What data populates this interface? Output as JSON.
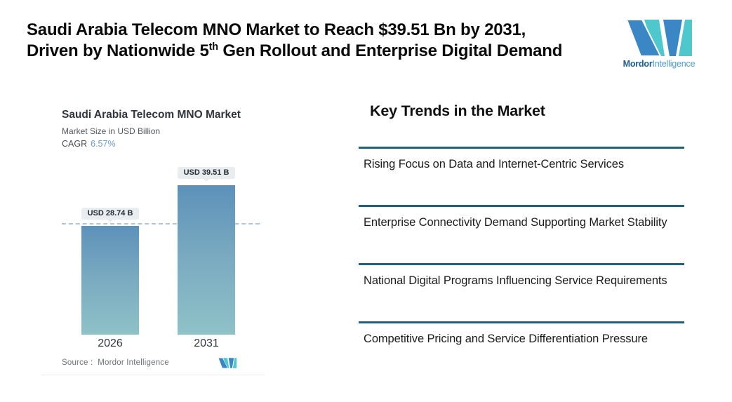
{
  "header": {
    "title_line1": "Saudi Arabia Telecom MNO Market to Reach $39.51 Bn by 2031,",
    "title_line2_pre": "Driven by Nationwide 5",
    "title_line2_sup": "th",
    "title_line2_post": " Gen Rollout and Enterprise Digital Demand"
  },
  "logo": {
    "word_bold": "Mordor",
    "word_light": "Intelligence",
    "mark_blue": "#3b86c4",
    "mark_teal": "#4ec7cd"
  },
  "chart": {
    "title": "Saudi Arabia Telecom MNO Market",
    "subtitle": "Market Size in USD Billion",
    "cagr_label": "CAGR",
    "cagr_value": "6.57%",
    "cagr_value_color": "#6d9ecb",
    "source_label": "Source :",
    "source_value": "Mordor Intelligence"
  },
  "chart_data": {
    "type": "bar",
    "categories": [
      "2026",
      "2031"
    ],
    "values": [
      28.74,
      39.51
    ],
    "value_labels": [
      "USD 28.74 B",
      "USD 39.51 B"
    ],
    "title": "Saudi Arabia Telecom MNO Market",
    "subtitle": "Market Size in USD Billion",
    "cagr": "6.57%",
    "unit": "USD Billion",
    "ylim": [
      0,
      42
    ],
    "grid": "off",
    "dashed_reference_value": 28.74,
    "dashed_line_color": "#a9c6df",
    "bar_gradient_top": "#5d91b9",
    "bar_gradient_bottom": "#8ec2c7",
    "label_pill_bg": "#e9edef"
  },
  "trends": {
    "heading": "Key Trends in the Market",
    "rule_color": "#21607f",
    "items": [
      "Rising Focus on Data and Internet-Centric Services",
      "Enterprise Connectivity Demand Supporting Market Stability",
      "National Digital Programs Influencing Service Requirements",
      "Competitive Pricing and Service Differentiation Pressure"
    ]
  }
}
